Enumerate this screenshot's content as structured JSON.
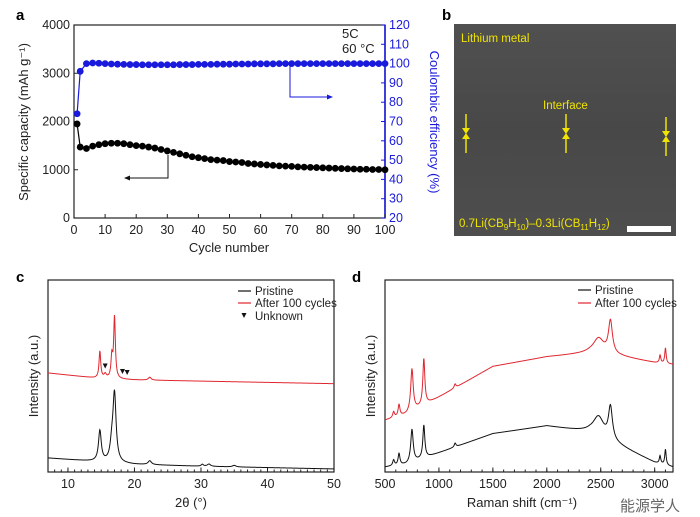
{
  "chart_data": [
    {
      "panel": "a",
      "type": "scatter",
      "xlabel": "Cycle number",
      "ylabel_left": "Specific capacity (mAh g⁻¹)",
      "ylabel_right": "Coulombic efficiency (%)",
      "xlim": [
        0,
        100
      ],
      "ylim_left": [
        0,
        4000
      ],
      "ylim_right": [
        20,
        120
      ],
      "xticks": [
        0,
        10,
        20,
        30,
        40,
        50,
        60,
        70,
        80,
        90,
        100
      ],
      "yticks_left": [
        0,
        1000,
        2000,
        3000,
        4000
      ],
      "yticks_right": [
        20,
        30,
        40,
        50,
        60,
        70,
        80,
        90,
        100,
        110,
        120
      ],
      "annotations": [
        "5C",
        "60 °C"
      ],
      "x": [
        1,
        2,
        4,
        6,
        8,
        10,
        12,
        14,
        16,
        18,
        20,
        22,
        24,
        26,
        28,
        30,
        32,
        34,
        36,
        38,
        40,
        42,
        44,
        46,
        48,
        50,
        52,
        54,
        56,
        58,
        60,
        62,
        64,
        66,
        68,
        70,
        72,
        74,
        76,
        78,
        80,
        82,
        84,
        86,
        88,
        90,
        92,
        94,
        96,
        98,
        100
      ],
      "series": [
        {
          "name": "Specific capacity",
          "axis": "left",
          "color": "#000000",
          "values": [
            1950,
            1470,
            1440,
            1490,
            1520,
            1540,
            1550,
            1550,
            1540,
            1520,
            1500,
            1490,
            1470,
            1450,
            1420,
            1390,
            1360,
            1330,
            1300,
            1270,
            1250,
            1230,
            1210,
            1200,
            1190,
            1170,
            1160,
            1150,
            1130,
            1120,
            1110,
            1100,
            1090,
            1080,
            1075,
            1070,
            1060,
            1055,
            1050,
            1045,
            1040,
            1035,
            1030,
            1025,
            1020,
            1015,
            1010,
            1010,
            1005,
            1005,
            1000
          ]
        },
        {
          "name": "Coulombic efficiency",
          "axis": "right",
          "color": "#1a1adc",
          "values": [
            74,
            96,
            100,
            100.3,
            100.2,
            100,
            99.8,
            99.7,
            99.6,
            99.5,
            99.5,
            99.4,
            99.4,
            99.4,
            99.4,
            99.4,
            99.4,
            99.5,
            99.5,
            99.5,
            99.6,
            99.6,
            99.6,
            99.7,
            99.7,
            99.7,
            99.8,
            99.8,
            99.8,
            99.9,
            99.9,
            99.9,
            99.9,
            100,
            100,
            100,
            100,
            100,
            100,
            100,
            100,
            100,
            100,
            100,
            100,
            100,
            100,
            100,
            100,
            100,
            100
          ]
        }
      ]
    },
    {
      "panel": "c",
      "type": "line",
      "xlabel": "2θ (°)",
      "ylabel": "Intensity (a.u.)",
      "xlim": [
        7,
        50
      ],
      "ylim": [
        0,
        100
      ],
      "xticks": [
        10,
        20,
        30,
        40,
        50
      ],
      "legend": [
        "Pristine",
        "After 100 cycles",
        "Unknown"
      ],
      "legend_position": "top-right",
      "unknown_markers": [
        15.6,
        18.2,
        18.9
      ],
      "series": [
        {
          "name": "Pristine",
          "color": "#111111",
          "baseline": [
            [
              7,
              7.3
            ],
            [
              14,
              5.5
            ],
            [
              20,
              4
            ],
            [
              30,
              3
            ],
            [
              50,
              1.6
            ]
          ],
          "peaks": [
            [
              14.8,
              16,
              0.25
            ],
            [
              16.6,
              8,
              0.3
            ],
            [
              17.0,
              35,
              0.28
            ],
            [
              22.3,
              2,
              0.3
            ],
            [
              30.2,
              1,
              0.2
            ],
            [
              31.2,
              1.2,
              0.3
            ],
            [
              35,
              0.8,
              0.3
            ]
          ]
        },
        {
          "name": "After 100 cycles",
          "color": "#e0262e",
          "baseline": [
            [
              7,
              51.6
            ],
            [
              14,
              49
            ],
            [
              20,
              48
            ],
            [
              50,
              46
            ]
          ],
          "peaks": [
            [
              14.8,
              14,
              0.15
            ],
            [
              15.6,
              2,
              0.2
            ],
            [
              16.6,
              11,
              0.15
            ],
            [
              17.0,
              32,
              0.15
            ],
            [
              22.3,
              1.5,
              0.25
            ]
          ]
        }
      ]
    },
    {
      "panel": "d",
      "type": "line",
      "xlabel": "Raman shift (cm⁻¹)",
      "ylabel": "Intensity (a.u.)",
      "xlim": [
        500,
        3170
      ],
      "ylim": [
        0,
        100
      ],
      "xticks": [
        500,
        1000,
        1500,
        2000,
        2500,
        3000
      ],
      "legend": [
        "Pristine",
        "After 100 cycles"
      ],
      "legend_position": "top-right",
      "series": [
        {
          "name": "Pristine",
          "color": "#111111",
          "baseline": [
            [
              500,
              2.6
            ],
            [
              700,
              4
            ],
            [
              1000,
              10
            ],
            [
              1500,
              20
            ],
            [
              2000,
              24
            ],
            [
              2400,
              20.8
            ],
            [
              2700,
              13
            ],
            [
              3000,
              5
            ],
            [
              3170,
              2.6
            ]
          ],
          "peaks": [
            [
              580,
              3,
              10
            ],
            [
              630,
              6,
              10
            ],
            [
              750,
              17,
              14
            ],
            [
              860,
              17,
              11
            ],
            [
              1150,
              2,
              10
            ],
            [
              2480,
              10,
              60
            ],
            [
              2590,
              17,
              22
            ],
            [
              3050,
              4,
              8
            ],
            [
              3100,
              8,
              8
            ]
          ]
        },
        {
          "name": "After 100 cycles",
          "color": "#e0262e",
          "baseline": [
            [
              500,
              27
            ],
            [
              700,
              30
            ],
            [
              1000,
              39
            ],
            [
              1500,
              55
            ],
            [
              2000,
              60
            ],
            [
              2400,
              62
            ],
            [
              2700,
              60
            ],
            [
              3000,
              57
            ],
            [
              3170,
              56
            ]
          ],
          "peaks": [
            [
              580,
              3,
              10
            ],
            [
              630,
              6,
              10
            ],
            [
              750,
              22,
              14
            ],
            [
              860,
              24,
              11
            ],
            [
              1150,
              2,
              10
            ],
            [
              2480,
              8,
              60
            ],
            [
              2590,
              17,
              22
            ],
            [
              3050,
              4,
              8
            ],
            [
              3100,
              8,
              8
            ]
          ]
        }
      ]
    }
  ],
  "panels": {
    "a": "a",
    "b": "b",
    "c": "c",
    "d": "d"
  },
  "image_b": {
    "top_label": "Lithium metal",
    "interface_label": "Interface",
    "formula": [
      "0.7Li(CB",
      "9",
      "H",
      "10",
      ")–0.3Li(CB",
      "11",
      "H",
      "12",
      ")"
    ]
  },
  "watermark": "能源学人"
}
